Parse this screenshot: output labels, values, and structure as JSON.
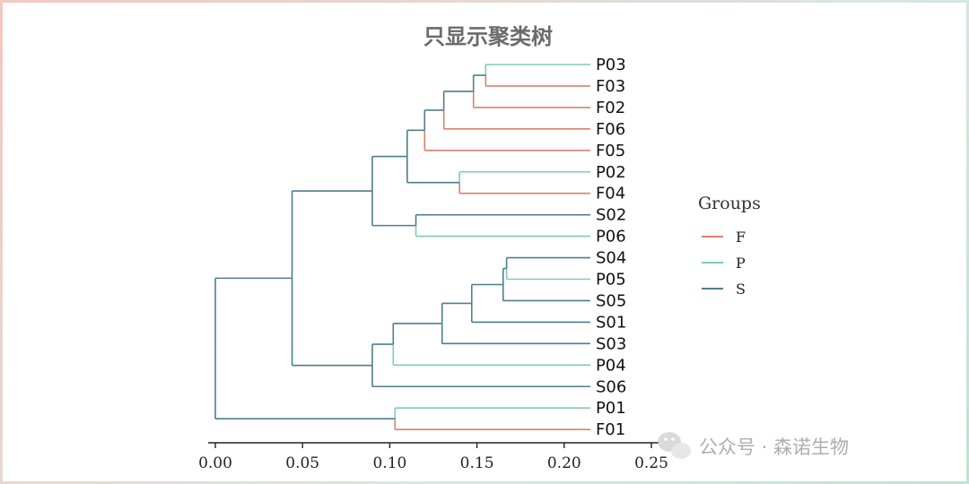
{
  "chart_data": {
    "type": "dendrogram",
    "title": "只显示聚类树",
    "xlim": [
      0,
      0.25
    ],
    "x_ticks": [
      "0.00",
      "0.05",
      "0.10",
      "0.15",
      "0.20",
      "0.25"
    ],
    "x_tick_values": [
      0,
      0.05,
      0.1,
      0.15,
      0.2,
      0.25
    ],
    "leaf_order": [
      "P03",
      "F03",
      "F02",
      "F06",
      "F05",
      "P02",
      "F04",
      "S02",
      "P06",
      "S04",
      "P05",
      "S05",
      "S01",
      "S03",
      "P04",
      "S06",
      "P01",
      "F01"
    ],
    "leaf_groups": {
      "P03": "P",
      "F03": "F",
      "F02": "F",
      "F06": "F",
      "F05": "F",
      "P02": "P",
      "F04": "F",
      "S02": "S",
      "P06": "P",
      "S04": "S",
      "P05": "P",
      "S05": "S",
      "S01": "S",
      "S03": "S",
      "P04": "P",
      "S06": "S",
      "P01": "P",
      "F01": "F"
    },
    "merges": [
      {
        "id": "m1",
        "left": "P03",
        "right": "F03",
        "height": 0.155
      },
      {
        "id": "m2",
        "left": "m1",
        "right": "F02",
        "height": 0.148
      },
      {
        "id": "m3",
        "left": "m2",
        "right": "F06",
        "height": 0.131
      },
      {
        "id": "m4",
        "left": "m3",
        "right": "F05",
        "height": 0.12
      },
      {
        "id": "m5",
        "left": "P02",
        "right": "F04",
        "height": 0.14
      },
      {
        "id": "m6",
        "left": "m4",
        "right": "m5",
        "height": 0.11
      },
      {
        "id": "m7",
        "left": "S02",
        "right": "P06",
        "height": 0.115
      },
      {
        "id": "m8",
        "left": "m6",
        "right": "m7",
        "height": 0.09
      },
      {
        "id": "m9",
        "left": "S04",
        "right": "P05",
        "height": 0.167
      },
      {
        "id": "m10",
        "left": "m9",
        "right": "S05",
        "height": 0.165
      },
      {
        "id": "m11",
        "left": "m10",
        "right": "S01",
        "height": 0.147
      },
      {
        "id": "m12",
        "left": "m11",
        "right": "S03",
        "height": 0.13
      },
      {
        "id": "m13",
        "left": "m12",
        "right": "P04",
        "height": 0.102
      },
      {
        "id": "m14",
        "left": "m13",
        "right": "S06",
        "height": 0.09
      },
      {
        "id": "m15",
        "left": "m8",
        "right": "m14",
        "height": 0.044
      },
      {
        "id": "m16",
        "left": "P01",
        "right": "F01",
        "height": 0.103
      },
      {
        "id": "m17",
        "left": "m15",
        "right": "m16",
        "height": 0.0
      }
    ],
    "leaf_height": 0.215,
    "legend": {
      "title": "Groups",
      "position": "right",
      "entries": [
        {
          "label": "F",
          "color": "#d9826a"
        },
        {
          "label": "P",
          "color": "#7fcbba"
        },
        {
          "label": "S",
          "color": "#4f7d8e"
        }
      ]
    }
  },
  "watermark": "公众号 · 森诺生物"
}
